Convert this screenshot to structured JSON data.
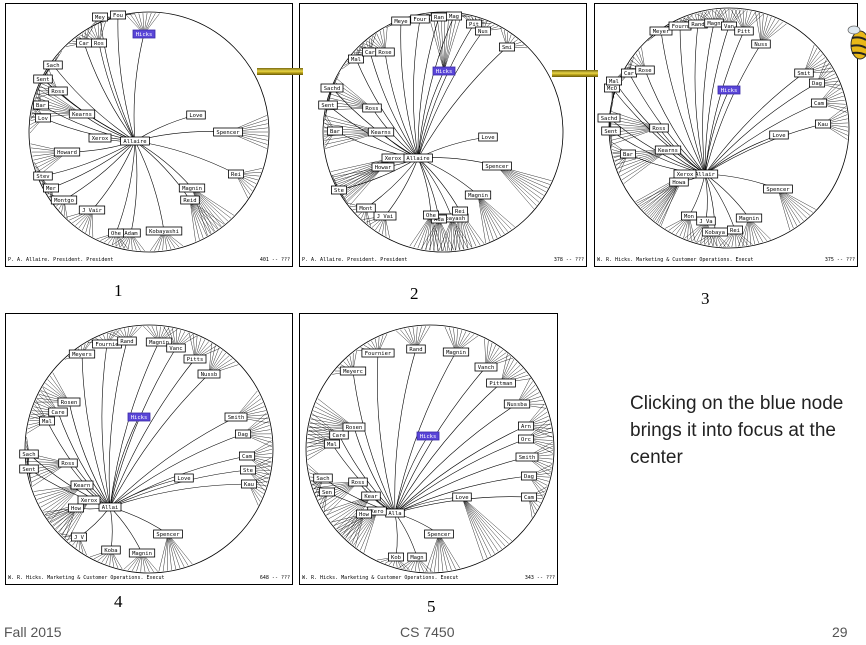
{
  "panels": [
    {
      "number": "1",
      "status_left": "P. A. Allaire. President. President",
      "status_right": "401 --  ???"
    },
    {
      "number": "2",
      "status_left": "P. A. Allaire. President. President",
      "status_right": "378 --  ???"
    },
    {
      "number": "3",
      "status_left": "W. R. Hicks. Marketing & Customer Operations. Execut",
      "status_right": "375 --  ???"
    },
    {
      "number": "4",
      "status_left": "W. R. Hicks. Marketing & Customer Operations. Execut",
      "status_right": "648 --  ???"
    },
    {
      "number": "5",
      "status_left": "W. R. Hicks. Marketing & Customer Operations. Execut",
      "status_right": "343 --  ???"
    }
  ],
  "trees": [
    {
      "nodes": [
        {
          "label": "Hicks",
          "focus": true
        },
        {
          "label": "Allaire"
        },
        {
          "label": "Love"
        },
        {
          "label": "Spencer"
        },
        {
          "label": "Xerox"
        },
        {
          "label": "Howard"
        },
        {
          "label": "Ross"
        },
        {
          "label": "Kearns"
        },
        {
          "label": "Magnin"
        },
        {
          "label": "Kobayashi"
        },
        {
          "label": "Reid"
        },
        {
          "label": "Rei"
        },
        {
          "label": "Adam"
        },
        {
          "label": "Ohe"
        },
        {
          "label": "J Vair"
        },
        {
          "label": "Montgo"
        },
        {
          "label": "Mer"
        },
        {
          "label": "Stev"
        },
        {
          "label": "Lov"
        },
        {
          "label": "Bar"
        },
        {
          "label": "Sent"
        },
        {
          "label": "Sach"
        },
        {
          "label": "Car"
        },
        {
          "label": "Ros"
        },
        {
          "label": "Mey"
        },
        {
          "label": "Fou"
        }
      ]
    },
    {
      "nodes": [
        {
          "label": "Hicks",
          "focus": true
        },
        {
          "label": "Allaire"
        },
        {
          "label": "Love"
        },
        {
          "label": "Spencer"
        },
        {
          "label": "Xerox"
        },
        {
          "label": "Howar"
        },
        {
          "label": "Ross"
        },
        {
          "label": "Kearns"
        },
        {
          "label": "Magnin"
        },
        {
          "label": "Kobayash"
        },
        {
          "label": "Rei"
        },
        {
          "label": "Ada"
        },
        {
          "label": "Ohe"
        },
        {
          "label": "J Vai"
        },
        {
          "label": "Mont"
        },
        {
          "label": "Ste"
        },
        {
          "label": "Bar"
        },
        {
          "label": "Sent"
        },
        {
          "label": "Sachd"
        },
        {
          "label": "Mal"
        },
        {
          "label": "Car"
        },
        {
          "label": "Rose"
        },
        {
          "label": "Meye"
        },
        {
          "label": "Four"
        },
        {
          "label": "Ran"
        },
        {
          "label": "Mag"
        },
        {
          "label": "Pit"
        },
        {
          "label": "Nus"
        },
        {
          "label": "Smi"
        }
      ]
    },
    {
      "nodes": [
        {
          "label": "Hicks",
          "focus": true
        },
        {
          "label": "Allair"
        },
        {
          "label": "Love"
        },
        {
          "label": "Spencer"
        },
        {
          "label": "Xerox"
        },
        {
          "label": "Howa"
        },
        {
          "label": "Ross"
        },
        {
          "label": "Kearns"
        },
        {
          "label": "Magnin"
        },
        {
          "label": "Kobaya"
        },
        {
          "label": "Rei"
        },
        {
          "label": "J Va"
        },
        {
          "label": "Mon"
        },
        {
          "label": "Bar"
        },
        {
          "label": "Sent"
        },
        {
          "label": "Sachd"
        },
        {
          "label": "McO"
        },
        {
          "label": "Mal"
        },
        {
          "label": "Car"
        },
        {
          "label": "Rose"
        },
        {
          "label": "Meyer"
        },
        {
          "label": "Fourn"
        },
        {
          "label": "Rand"
        },
        {
          "label": "Magn"
        },
        {
          "label": "Van"
        },
        {
          "label": "Pitt"
        },
        {
          "label": "Nuss"
        },
        {
          "label": "Smit"
        },
        {
          "label": "Dag"
        },
        {
          "label": "Cam"
        },
        {
          "label": "Kau"
        }
      ]
    },
    {
      "nodes": [
        {
          "label": "Hicks",
          "focus": true
        },
        {
          "label": "Allai"
        },
        {
          "label": "Love"
        },
        {
          "label": "Spencer"
        },
        {
          "label": "Xerox"
        },
        {
          "label": "How"
        },
        {
          "label": "Ross"
        },
        {
          "label": "Kearn"
        },
        {
          "label": "Magnin"
        },
        {
          "label": "Koba"
        },
        {
          "label": "J V"
        },
        {
          "label": "Sach"
        },
        {
          "label": "Sent"
        },
        {
          "label": "Mal"
        },
        {
          "label": "Care"
        },
        {
          "label": "Rosen"
        },
        {
          "label": "Meyers"
        },
        {
          "label": "Fournie"
        },
        {
          "label": "Rand"
        },
        {
          "label": "Magnin"
        },
        {
          "label": "Vanc"
        },
        {
          "label": "Pitts"
        },
        {
          "label": "Nussb"
        },
        {
          "label": "Smith"
        },
        {
          "label": "Dag"
        },
        {
          "label": "Cam"
        },
        {
          "label": "Ste"
        },
        {
          "label": "Kau"
        }
      ]
    },
    {
      "nodes": [
        {
          "label": "Hicks",
          "focus": true
        },
        {
          "label": "Alla"
        },
        {
          "label": "Love"
        },
        {
          "label": "Spencer"
        },
        {
          "label": "Xero"
        },
        {
          "label": "How"
        },
        {
          "label": "Ross"
        },
        {
          "label": "Kear"
        },
        {
          "label": "Magn"
        },
        {
          "label": "Kob"
        },
        {
          "label": "Sach"
        },
        {
          "label": "Sen"
        },
        {
          "label": "Mal"
        },
        {
          "label": "Care"
        },
        {
          "label": "Rosen"
        },
        {
          "label": "Meyerc"
        },
        {
          "label": "Fournier"
        },
        {
          "label": "Rand"
        },
        {
          "label": "Magnin"
        },
        {
          "label": "Vanch"
        },
        {
          "label": "Pittman"
        },
        {
          "label": "Nussba"
        },
        {
          "label": "Arn"
        },
        {
          "label": "Orc"
        },
        {
          "label": "Smith"
        },
        {
          "label": "Dag"
        },
        {
          "label": "Cam"
        }
      ]
    }
  ],
  "caption": "Clicking on the blue node brings it into focus at the center",
  "footer": {
    "left": "Fall 2015",
    "center": "CS 7450",
    "right": "29"
  },
  "colors": {
    "focus_node": "#5a46d8",
    "connector": "#d4c030"
  }
}
